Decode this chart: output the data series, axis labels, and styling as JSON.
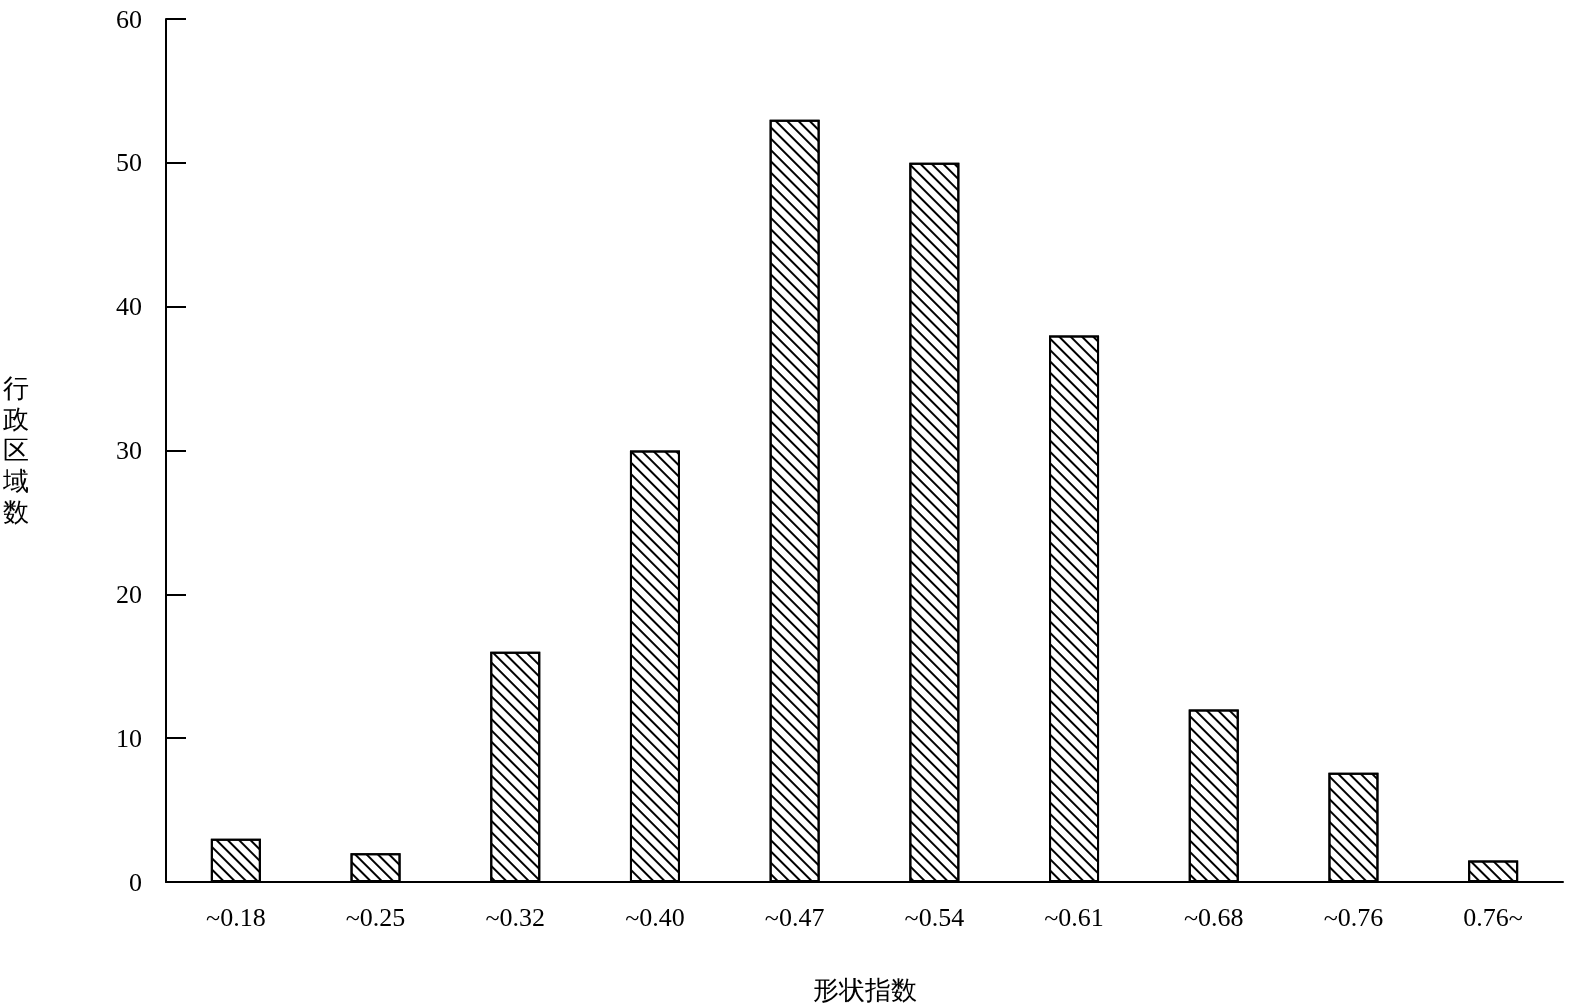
{
  "chart_data": {
    "type": "bar",
    "xlabel": "形状指数",
    "ylabel": "行政区域数",
    "categories": [
      "~0.18",
      "~0.25",
      "~0.32",
      "~0.40",
      "~0.47",
      "~0.54",
      "~0.61",
      "~0.68",
      "~0.76",
      "0.76~"
    ],
    "values": [
      3,
      2,
      16,
      30,
      53,
      50,
      38,
      12,
      7.6,
      1.5
    ],
    "color": "#000000",
    "ylim": [
      0,
      60
    ],
    "yticks": [
      0,
      10,
      20,
      30,
      40,
      50,
      60
    ],
    "grid": false
  }
}
